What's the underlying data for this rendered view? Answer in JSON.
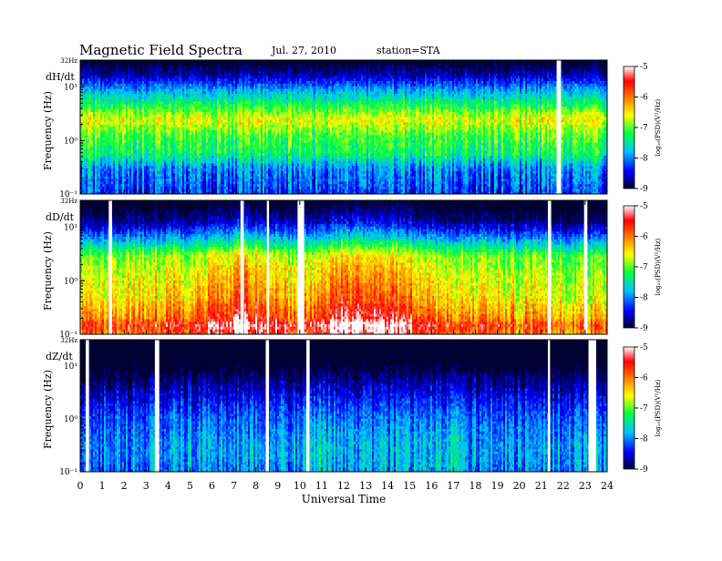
{
  "header": {
    "title": "Magnetic  Field  Spectra",
    "date": "Jul.  27, 2010",
    "station": "station=STA"
  },
  "chart_data": {
    "type": "heatmap",
    "xlabel": "Universal Time",
    "x_ticks": [
      "0",
      "1",
      "2",
      "3",
      "4",
      "5",
      "6",
      "7",
      "8",
      "9",
      "10",
      "11",
      "12",
      "13",
      "14",
      "15",
      "16",
      "17",
      "18",
      "19",
      "20",
      "21",
      "22",
      "23",
      "24"
    ],
    "xlim": [
      0,
      24
    ],
    "y_scale": "log",
    "ylim_hz": [
      0.1,
      32
    ],
    "colorbar": {
      "label": "log₁₀(PSD)(V²/Hz)",
      "ticks": [
        "-5",
        "-6",
        "-7",
        "-8",
        "-9"
      ],
      "range": [
        -9,
        -5
      ],
      "colors": [
        "#000033",
        "#0000ff",
        "#00c0ff",
        "#00ff40",
        "#ffff00",
        "#ff8000",
        "#ff0000",
        "#ffffff"
      ]
    },
    "panels": [
      {
        "component": "dH/dt",
        "ylabel": "Frequency  (Hz)",
        "y_ticks": [
          "32Hz",
          "10¹",
          "10⁰",
          "10⁻¹"
        ],
        "profile": [
          [
            0.1,
            -8.3
          ],
          [
            0.3,
            -8.0
          ],
          [
            0.6,
            -7.3
          ],
          [
            1.2,
            -7.1
          ],
          [
            2.5,
            -6.6
          ],
          [
            5,
            -7.3
          ],
          [
            9,
            -7.9
          ],
          [
            16,
            -8.6
          ],
          [
            32,
            -9.2
          ]
        ],
        "activity": [
          [
            0,
            0.0
          ],
          [
            24,
            0.0
          ]
        ],
        "gaps": [
          [
            21.7,
            21.9
          ]
        ]
      },
      {
        "component": "dD/dt",
        "ylabel": "Frequency  (Hz)",
        "y_ticks": [
          "32Hz",
          "10¹",
          "10⁰",
          "10⁻¹"
        ],
        "profile": [
          [
            0.1,
            -6.2
          ],
          [
            0.15,
            -5.9
          ],
          [
            0.2,
            -6.3
          ],
          [
            0.5,
            -6.7
          ],
          [
            1.5,
            -6.9
          ],
          [
            3,
            -7.1
          ],
          [
            6,
            -8.0
          ],
          [
            12,
            -8.8
          ],
          [
            32,
            -9.4
          ]
        ],
        "activity": [
          [
            0,
            0.1
          ],
          [
            5,
            0.3
          ],
          [
            7.5,
            0.7
          ],
          [
            8.5,
            0.5
          ],
          [
            10,
            0.2
          ],
          [
            12,
            0.8
          ],
          [
            14.5,
            0.6
          ],
          [
            16,
            0.3
          ],
          [
            20,
            0.1
          ],
          [
            24,
            0.0
          ]
        ],
        "gaps": [
          [
            1.3,
            1.45
          ],
          [
            7.3,
            7.45
          ],
          [
            8.5,
            8.6
          ],
          [
            9.9,
            10.2
          ],
          [
            21.3,
            21.45
          ],
          [
            22.95,
            23.1
          ]
        ]
      },
      {
        "component": "dZ/dt",
        "ylabel": "Frequency  (Hz)",
        "y_ticks": [
          "32Hz",
          "10¹",
          "10⁰",
          "10⁻¹"
        ],
        "profile": [
          [
            0.1,
            -8.1
          ],
          [
            0.3,
            -8.0
          ],
          [
            1,
            -8.2
          ],
          [
            3,
            -8.6
          ],
          [
            6,
            -8.9
          ],
          [
            12,
            -9.3
          ],
          [
            32,
            -9.6
          ]
        ],
        "activity": [
          [
            0,
            0.0
          ],
          [
            10,
            0.1
          ],
          [
            11,
            0.3
          ],
          [
            13,
            0.1
          ],
          [
            16,
            0.2
          ],
          [
            18,
            0.1
          ],
          [
            24,
            0.0
          ]
        ],
        "gaps": [
          [
            0.25,
            0.4
          ],
          [
            3.4,
            3.6
          ],
          [
            8.45,
            8.6
          ],
          [
            10.3,
            10.45
          ],
          [
            21.3,
            21.4
          ],
          [
            23.15,
            23.5
          ]
        ]
      }
    ]
  }
}
